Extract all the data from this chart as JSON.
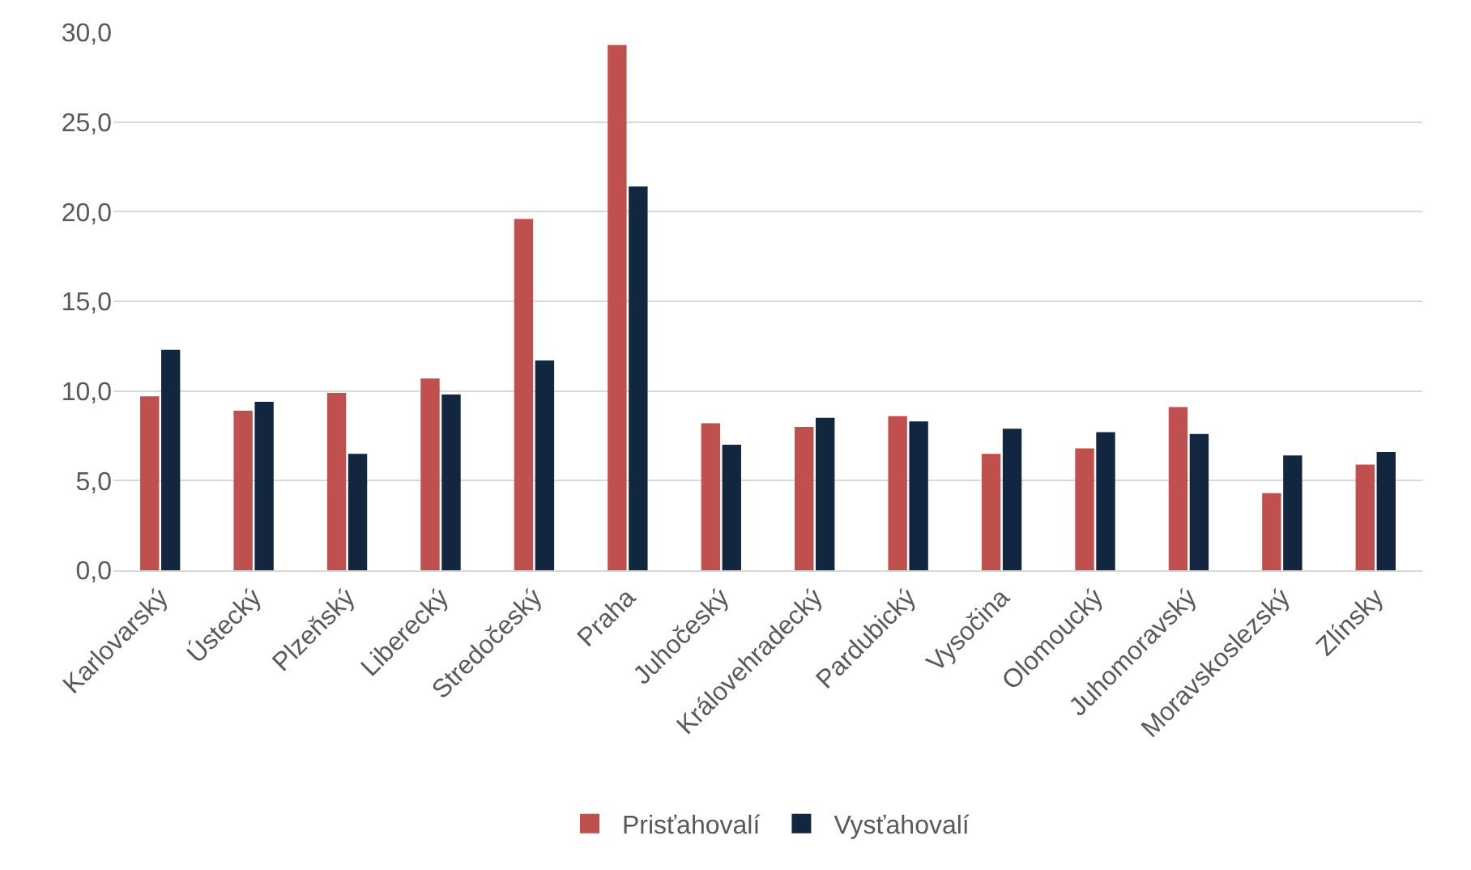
{
  "chart_data": {
    "type": "bar",
    "categories": [
      "Karlovarský",
      "Ústecký",
      "Plzeňský",
      "Liberecký",
      "Stredočeský",
      "Praha",
      "Juhočeský",
      "Královehradecký",
      "Pardubický",
      "Vysočina",
      "Olomoucký",
      "Juhomoravský",
      "Moravskoslezský",
      "Zlínsky"
    ],
    "series": [
      {
        "name": "Prisťahovalí",
        "color": "#c0504d",
        "values": [
          9.7,
          8.9,
          9.9,
          10.7,
          19.6,
          29.3,
          8.2,
          8.0,
          8.6,
          6.5,
          6.8,
          9.1,
          4.3,
          5.9
        ]
      },
      {
        "name": "Vysťahovalí",
        "color": "#12263f",
        "values": [
          12.3,
          9.4,
          6.5,
          9.8,
          11.7,
          21.4,
          7.0,
          8.5,
          8.3,
          7.9,
          7.7,
          7.6,
          6.4,
          6.6
        ]
      }
    ],
    "ylim": [
      0,
      30
    ],
    "yticks": [
      {
        "value": 0,
        "label": "0,0"
      },
      {
        "value": 5,
        "label": "5,0"
      },
      {
        "value": 10,
        "label": "10,0"
      },
      {
        "value": 15,
        "label": "15,0"
      },
      {
        "value": 20,
        "label": "20,0"
      },
      {
        "value": 25,
        "label": "25,0"
      },
      {
        "value": 30,
        "label": "30,0"
      }
    ],
    "grid": "y",
    "legend": "bottom"
  }
}
